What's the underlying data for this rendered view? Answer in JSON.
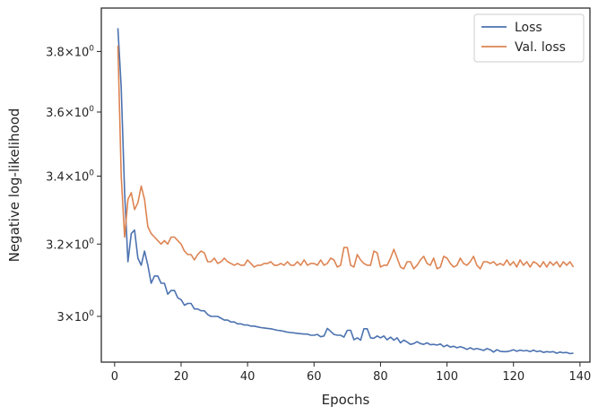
{
  "chart_data": {
    "type": "line",
    "xlabel": "Epochs",
    "ylabel": "Negative log-likelihood",
    "yscale": "log",
    "xlim": [
      -4,
      143
    ],
    "ylim": [
      2.88,
      3.95
    ],
    "xticks": [
      0,
      20,
      40,
      60,
      80,
      100,
      120,
      140
    ],
    "xtick_labels": [
      "0",
      "20",
      "40",
      "60",
      "80",
      "100",
      "120",
      "140"
    ],
    "yticks": [
      {
        "value": 3.8,
        "base": "3.8",
        "mult": "×",
        "pow_base": "10",
        "exp": "0"
      },
      {
        "value": 3.6,
        "base": "3.6",
        "mult": "×",
        "pow_base": "10",
        "exp": "0"
      },
      {
        "value": 3.4,
        "base": "3.4",
        "mult": "×",
        "pow_base": "10",
        "exp": "0"
      },
      {
        "value": 3.2,
        "base": "3.2",
        "mult": "×",
        "pow_base": "10",
        "exp": "0"
      },
      {
        "value": 3.0,
        "base": "3",
        "mult": "×",
        "pow_base": "10",
        "exp": "0"
      }
    ],
    "legend_position": "top-right",
    "grid": false,
    "series": [
      {
        "name": "Loss",
        "color": "#4c72b0",
        "points": [
          [
            1,
            3.88
          ],
          [
            2,
            3.68
          ],
          [
            3,
            3.35
          ],
          [
            4,
            3.15
          ],
          [
            5,
            3.23
          ],
          [
            6,
            3.24
          ],
          [
            7,
            3.16
          ],
          [
            8,
            3.14
          ],
          [
            9,
            3.18
          ],
          [
            10,
            3.14
          ],
          [
            11,
            3.09
          ],
          [
            12,
            3.11
          ],
          [
            13,
            3.11
          ],
          [
            14,
            3.09
          ],
          [
            15,
            3.09
          ],
          [
            16,
            3.06
          ],
          [
            17,
            3.07
          ],
          [
            18,
            3.07
          ],
          [
            19,
            3.05
          ],
          [
            20,
            3.045
          ],
          [
            21,
            3.03
          ],
          [
            22,
            3.035
          ],
          [
            23,
            3.035
          ],
          [
            24,
            3.02
          ],
          [
            25,
            3.02
          ],
          [
            26,
            3.015
          ],
          [
            27,
            3.015
          ],
          [
            28,
            3.005
          ],
          [
            29,
            3.0
          ],
          [
            30,
            3.0
          ],
          [
            31,
            3.0
          ],
          [
            32,
            2.995
          ],
          [
            33,
            2.99
          ],
          [
            34,
            2.99
          ],
          [
            35,
            2.985
          ],
          [
            36,
            2.985
          ],
          [
            37,
            2.98
          ],
          [
            38,
            2.98
          ],
          [
            39,
            2.977
          ],
          [
            40,
            2.977
          ],
          [
            41,
            2.974
          ],
          [
            42,
            2.974
          ],
          [
            43,
            2.972
          ],
          [
            44,
            2.97
          ],
          [
            45,
            2.969
          ],
          [
            46,
            2.968
          ],
          [
            47,
            2.967
          ],
          [
            48,
            2.965
          ],
          [
            49,
            2.963
          ],
          [
            50,
            2.962
          ],
          [
            51,
            2.96
          ],
          [
            52,
            2.958
          ],
          [
            53,
            2.957
          ],
          [
            54,
            2.956
          ],
          [
            55,
            2.955
          ],
          [
            56,
            2.954
          ],
          [
            57,
            2.953
          ],
          [
            58,
            2.953
          ],
          [
            59,
            2.95
          ],
          [
            60,
            2.95
          ],
          [
            61,
            2.952
          ],
          [
            62,
            2.946
          ],
          [
            63,
            2.948
          ],
          [
            64,
            2.968
          ],
          [
            65,
            2.96
          ],
          [
            66,
            2.952
          ],
          [
            67,
            2.95
          ],
          [
            68,
            2.95
          ],
          [
            69,
            2.945
          ],
          [
            70,
            2.963
          ],
          [
            71,
            2.963
          ],
          [
            72,
            2.938
          ],
          [
            73,
            2.943
          ],
          [
            74,
            2.937
          ],
          [
            75,
            2.967
          ],
          [
            76,
            2.967
          ],
          [
            77,
            2.943
          ],
          [
            78,
            2.942
          ],
          [
            79,
            2.948
          ],
          [
            80,
            2.943
          ],
          [
            81,
            2.948
          ],
          [
            82,
            2.938
          ],
          [
            83,
            2.945
          ],
          [
            84,
            2.937
          ],
          [
            85,
            2.943
          ],
          [
            86,
            2.93
          ],
          [
            87,
            2.937
          ],
          [
            88,
            2.932
          ],
          [
            89,
            2.926
          ],
          [
            90,
            2.928
          ],
          [
            91,
            2.933
          ],
          [
            92,
            2.928
          ],
          [
            93,
            2.926
          ],
          [
            94,
            2.93
          ],
          [
            95,
            2.925
          ],
          [
            96,
            2.926
          ],
          [
            97,
            2.924
          ],
          [
            98,
            2.927
          ],
          [
            99,
            2.92
          ],
          [
            100,
            2.924
          ],
          [
            101,
            2.919
          ],
          [
            102,
            2.921
          ],
          [
            103,
            2.917
          ],
          [
            104,
            2.92
          ],
          [
            105,
            2.917
          ],
          [
            106,
            2.913
          ],
          [
            107,
            2.917
          ],
          [
            108,
            2.913
          ],
          [
            109,
            2.915
          ],
          [
            110,
            2.913
          ],
          [
            111,
            2.91
          ],
          [
            112,
            2.915
          ],
          [
            113,
            2.912
          ],
          [
            114,
            2.906
          ],
          [
            115,
            2.912
          ],
          [
            116,
            2.908
          ],
          [
            117,
            2.907
          ],
          [
            118,
            2.907
          ],
          [
            119,
            2.909
          ],
          [
            120,
            2.912
          ],
          [
            121,
            2.908
          ],
          [
            122,
            2.911
          ],
          [
            123,
            2.909
          ],
          [
            124,
            2.91
          ],
          [
            125,
            2.907
          ],
          [
            126,
            2.911
          ],
          [
            127,
            2.907
          ],
          [
            128,
            2.909
          ],
          [
            129,
            2.905
          ],
          [
            130,
            2.907
          ],
          [
            131,
            2.906
          ],
          [
            132,
            2.907
          ],
          [
            133,
            2.903
          ],
          [
            134,
            2.906
          ],
          [
            135,
            2.904
          ],
          [
            136,
            2.905
          ],
          [
            137,
            2.902
          ],
          [
            138,
            2.903
          ]
        ]
      },
      {
        "name": "Val. loss",
        "color": "#dd8452",
        "points": [
          [
            1,
            3.82
          ],
          [
            2,
            3.4
          ],
          [
            3,
            3.22
          ],
          [
            4,
            3.33
          ],
          [
            5,
            3.35
          ],
          [
            6,
            3.3
          ],
          [
            7,
            3.32
          ],
          [
            8,
            3.37
          ],
          [
            9,
            3.33
          ],
          [
            10,
            3.25
          ],
          [
            11,
            3.23
          ],
          [
            12,
            3.22
          ],
          [
            13,
            3.21
          ],
          [
            14,
            3.2
          ],
          [
            15,
            3.21
          ],
          [
            16,
            3.2
          ],
          [
            17,
            3.22
          ],
          [
            18,
            3.22
          ],
          [
            19,
            3.21
          ],
          [
            20,
            3.2
          ],
          [
            21,
            3.18
          ],
          [
            22,
            3.17
          ],
          [
            23,
            3.17
          ],
          [
            24,
            3.155
          ],
          [
            25,
            3.17
          ],
          [
            26,
            3.18
          ],
          [
            27,
            3.175
          ],
          [
            28,
            3.15
          ],
          [
            29,
            3.15
          ],
          [
            30,
            3.16
          ],
          [
            31,
            3.145
          ],
          [
            32,
            3.15
          ],
          [
            33,
            3.16
          ],
          [
            34,
            3.15
          ],
          [
            35,
            3.145
          ],
          [
            36,
            3.14
          ],
          [
            37,
            3.145
          ],
          [
            38,
            3.14
          ],
          [
            39,
            3.14
          ],
          [
            40,
            3.155
          ],
          [
            41,
            3.145
          ],
          [
            42,
            3.135
          ],
          [
            43,
            3.14
          ],
          [
            44,
            3.14
          ],
          [
            45,
            3.145
          ],
          [
            46,
            3.145
          ],
          [
            47,
            3.15
          ],
          [
            48,
            3.14
          ],
          [
            49,
            3.14
          ],
          [
            50,
            3.145
          ],
          [
            51,
            3.14
          ],
          [
            52,
            3.15
          ],
          [
            53,
            3.14
          ],
          [
            54,
            3.14
          ],
          [
            55,
            3.15
          ],
          [
            56,
            3.14
          ],
          [
            57,
            3.155
          ],
          [
            58,
            3.14
          ],
          [
            59,
            3.145
          ],
          [
            60,
            3.145
          ],
          [
            61,
            3.14
          ],
          [
            62,
            3.155
          ],
          [
            63,
            3.14
          ],
          [
            64,
            3.145
          ],
          [
            65,
            3.16
          ],
          [
            66,
            3.155
          ],
          [
            67,
            3.135
          ],
          [
            68,
            3.14
          ],
          [
            69,
            3.19
          ],
          [
            70,
            3.19
          ],
          [
            71,
            3.14
          ],
          [
            72,
            3.135
          ],
          [
            73,
            3.17
          ],
          [
            74,
            3.155
          ],
          [
            75,
            3.145
          ],
          [
            76,
            3.14
          ],
          [
            77,
            3.14
          ],
          [
            78,
            3.18
          ],
          [
            79,
            3.175
          ],
          [
            80,
            3.135
          ],
          [
            81,
            3.14
          ],
          [
            82,
            3.14
          ],
          [
            83,
            3.16
          ],
          [
            84,
            3.185
          ],
          [
            85,
            3.16
          ],
          [
            86,
            3.135
          ],
          [
            87,
            3.13
          ],
          [
            88,
            3.15
          ],
          [
            89,
            3.15
          ],
          [
            90,
            3.13
          ],
          [
            91,
            3.14
          ],
          [
            92,
            3.155
          ],
          [
            93,
            3.165
          ],
          [
            94,
            3.145
          ],
          [
            95,
            3.14
          ],
          [
            96,
            3.16
          ],
          [
            97,
            3.13
          ],
          [
            98,
            3.135
          ],
          [
            99,
            3.165
          ],
          [
            100,
            3.16
          ],
          [
            101,
            3.145
          ],
          [
            102,
            3.135
          ],
          [
            103,
            3.14
          ],
          [
            104,
            3.16
          ],
          [
            105,
            3.145
          ],
          [
            106,
            3.14
          ],
          [
            107,
            3.15
          ],
          [
            108,
            3.165
          ],
          [
            109,
            3.14
          ],
          [
            110,
            3.13
          ],
          [
            111,
            3.15
          ],
          [
            112,
            3.15
          ],
          [
            113,
            3.145
          ],
          [
            114,
            3.15
          ],
          [
            115,
            3.14
          ],
          [
            116,
            3.145
          ],
          [
            117,
            3.14
          ],
          [
            118,
            3.155
          ],
          [
            119,
            3.14
          ],
          [
            120,
            3.15
          ],
          [
            121,
            3.135
          ],
          [
            122,
            3.155
          ],
          [
            123,
            3.14
          ],
          [
            124,
            3.15
          ],
          [
            125,
            3.135
          ],
          [
            126,
            3.15
          ],
          [
            127,
            3.145
          ],
          [
            128,
            3.135
          ],
          [
            129,
            3.15
          ],
          [
            130,
            3.135
          ],
          [
            131,
            3.15
          ],
          [
            132,
            3.14
          ],
          [
            133,
            3.15
          ],
          [
            134,
            3.135
          ],
          [
            135,
            3.15
          ],
          [
            136,
            3.14
          ],
          [
            137,
            3.15
          ],
          [
            138,
            3.135
          ]
        ]
      }
    ]
  }
}
